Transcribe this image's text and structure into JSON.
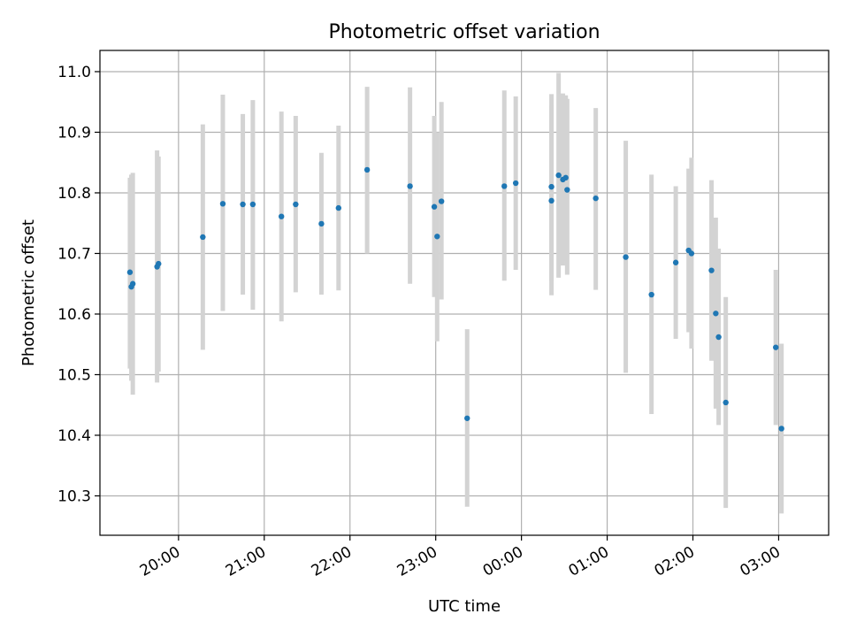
{
  "chart_data": {
    "type": "scatter",
    "title": "Photometric offset variation",
    "xlabel": "UTC time",
    "ylabel": "Photometric offset",
    "x_axis": "time",
    "xlim": [
      "19:05",
      "03:35"
    ],
    "ylim": [
      10.235,
      11.035
    ],
    "x_ticks": [
      "20:00",
      "21:00",
      "22:00",
      "23:00",
      "00:00",
      "01:00",
      "02:00",
      "03:00"
    ],
    "y_ticks": [
      "10.3",
      "10.4",
      "10.5",
      "10.6",
      "10.7",
      "10.8",
      "10.9",
      "11.0"
    ],
    "grid": true,
    "error_bar_color": "#d3d3d3",
    "point_color": "#1f77b4",
    "points": [
      {
        "t": "19:26",
        "y": 10.669,
        "lo": 10.51,
        "hi": 10.825
      },
      {
        "t": "19:27",
        "y": 10.645,
        "lo": 10.49,
        "hi": 10.83
      },
      {
        "t": "19:28",
        "y": 10.65,
        "lo": 10.467,
        "hi": 10.833
      },
      {
        "t": "19:45",
        "y": 10.678,
        "lo": 10.487,
        "hi": 10.87
      },
      {
        "t": "19:46",
        "y": 10.683,
        "lo": 10.505,
        "hi": 10.86
      },
      {
        "t": "20:17",
        "y": 10.727,
        "lo": 10.541,
        "hi": 10.913
      },
      {
        "t": "20:31",
        "y": 10.782,
        "lo": 10.605,
        "hi": 10.962
      },
      {
        "t": "20:45",
        "y": 10.781,
        "lo": 10.632,
        "hi": 10.93
      },
      {
        "t": "20:52",
        "y": 10.781,
        "lo": 10.607,
        "hi": 10.953
      },
      {
        "t": "21:12",
        "y": 10.761,
        "lo": 10.588,
        "hi": 10.934
      },
      {
        "t": "21:22",
        "y": 10.781,
        "lo": 10.636,
        "hi": 10.927
      },
      {
        "t": "21:40",
        "y": 10.749,
        "lo": 10.632,
        "hi": 10.866
      },
      {
        "t": "21:52",
        "y": 10.775,
        "lo": 10.639,
        "hi": 10.911
      },
      {
        "t": "22:12",
        "y": 10.838,
        "lo": 10.7,
        "hi": 10.975
      },
      {
        "t": "22:42",
        "y": 10.811,
        "lo": 10.65,
        "hi": 10.974
      },
      {
        "t": "22:59",
        "y": 10.777,
        "lo": 10.628,
        "hi": 10.927
      },
      {
        "t": "23:01",
        "y": 10.728,
        "lo": 10.555,
        "hi": 10.9
      },
      {
        "t": "23:04",
        "y": 10.786,
        "lo": 10.624,
        "hi": 10.95
      },
      {
        "t": "23:22",
        "y": 10.428,
        "lo": 10.282,
        "hi": 10.575
      },
      {
        "t": "23:48",
        "y": 10.811,
        "lo": 10.655,
        "hi": 10.969
      },
      {
        "t": "23:56",
        "y": 10.816,
        "lo": 10.673,
        "hi": 10.959
      },
      {
        "t": "00:21",
        "y": 10.81,
        "lo": 10.655,
        "hi": 10.963
      },
      {
        "t": "00:21",
        "y": 10.787,
        "lo": 10.631,
        "hi": 10.944
      },
      {
        "t": "00:26",
        "y": 10.829,
        "lo": 10.66,
        "hi": 10.998
      },
      {
        "t": "00:29",
        "y": 10.822,
        "lo": 10.68,
        "hi": 10.964
      },
      {
        "t": "00:31",
        "y": 10.825,
        "lo": 10.688,
        "hi": 10.961
      },
      {
        "t": "00:32",
        "y": 10.805,
        "lo": 10.665,
        "hi": 10.955
      },
      {
        "t": "00:52",
        "y": 10.791,
        "lo": 10.64,
        "hi": 10.94
      },
      {
        "t": "01:13",
        "y": 10.694,
        "lo": 10.503,
        "hi": 10.886
      },
      {
        "t": "01:31",
        "y": 10.632,
        "lo": 10.435,
        "hi": 10.83
      },
      {
        "t": "01:48",
        "y": 10.685,
        "lo": 10.559,
        "hi": 10.811
      },
      {
        "t": "01:57",
        "y": 10.705,
        "lo": 10.57,
        "hi": 10.84
      },
      {
        "t": "01:59",
        "y": 10.7,
        "lo": 10.543,
        "hi": 10.858
      },
      {
        "t": "02:13",
        "y": 10.672,
        "lo": 10.523,
        "hi": 10.821
      },
      {
        "t": "02:16",
        "y": 10.601,
        "lo": 10.444,
        "hi": 10.759
      },
      {
        "t": "02:18",
        "y": 10.562,
        "lo": 10.417,
        "hi": 10.708
      },
      {
        "t": "02:23",
        "y": 10.454,
        "lo": 10.28,
        "hi": 10.628
      },
      {
        "t": "02:58",
        "y": 10.545,
        "lo": 10.417,
        "hi": 10.673
      },
      {
        "t": "03:02",
        "y": 10.411,
        "lo": 10.271,
        "hi": 10.551
      }
    ]
  }
}
